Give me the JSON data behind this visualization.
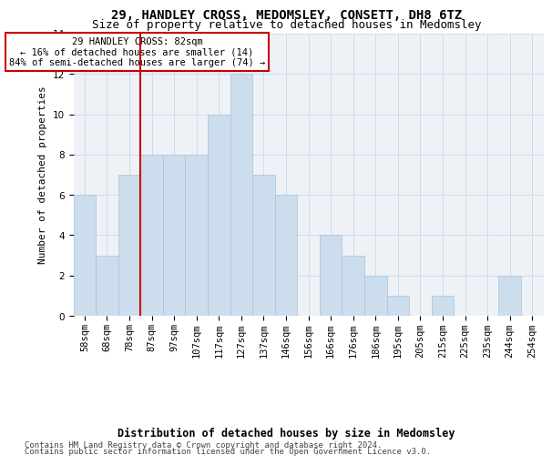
{
  "title": "29, HANDLEY CROSS, MEDOMSLEY, CONSETT, DH8 6TZ",
  "subtitle": "Size of property relative to detached houses in Medomsley",
  "xlabel": "Distribution of detached houses by size in Medomsley",
  "ylabel": "Number of detached properties",
  "bar_labels": [
    "58sqm",
    "68sqm",
    "78sqm",
    "87sqm",
    "97sqm",
    "107sqm",
    "117sqm",
    "127sqm",
    "137sqm",
    "146sqm",
    "156sqm",
    "166sqm",
    "176sqm",
    "186sqm",
    "195sqm",
    "205sqm",
    "215sqm",
    "225sqm",
    "235sqm",
    "244sqm",
    "254sqm"
  ],
  "bar_values": [
    6,
    3,
    7,
    8,
    8,
    8,
    10,
    12,
    7,
    6,
    0,
    4,
    3,
    2,
    1,
    0,
    1,
    0,
    0,
    2,
    0
  ],
  "bar_color": "#ccdded",
  "bar_edge_color": "#a8c4d8",
  "subject_line_idx": 2,
  "subject_line_color": "#cc0000",
  "annotation_text": "29 HANDLEY CROSS: 82sqm\n← 16% of detached houses are smaller (14)\n84% of semi-detached houses are larger (74) →",
  "annotation_box_color": "#cc0000",
  "ylim": [
    0,
    14
  ],
  "yticks": [
    0,
    2,
    4,
    6,
    8,
    10,
    12,
    14
  ],
  "footer1": "Contains HM Land Registry data © Crown copyright and database right 2024.",
  "footer2": "Contains public sector information licensed under the Open Government Licence v3.0.",
  "title_fontsize": 10,
  "subtitle_fontsize": 9,
  "xlabel_fontsize": 8.5,
  "ylabel_fontsize": 8,
  "tick_fontsize": 7.5,
  "annotation_fontsize": 7.5,
  "footer_fontsize": 6.5,
  "grid_color": "#d0dce8",
  "background_color": "#eef2f7"
}
